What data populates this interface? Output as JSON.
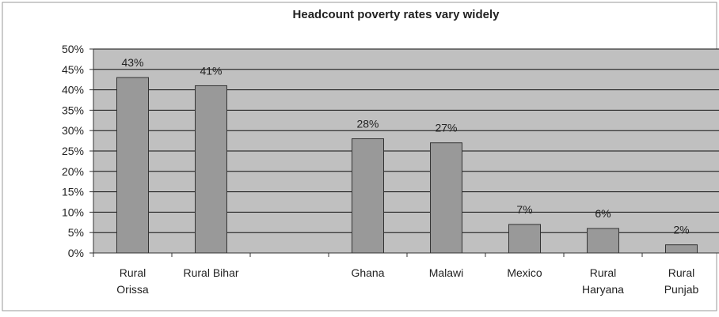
{
  "chart_data": {
    "type": "bar",
    "title": "Headcount poverty rates vary widely",
    "categories": [
      [
        "Rural",
        "Orissa"
      ],
      [
        "Rural Bihar"
      ],
      [
        ""
      ],
      [
        "Ghana"
      ],
      [
        "Malawi"
      ],
      [
        "Mexico"
      ],
      [
        "Rural",
        "Haryana"
      ],
      [
        "Rural",
        "Punjab"
      ]
    ],
    "values": [
      43,
      41,
      null,
      28,
      27,
      7,
      6,
      2
    ],
    "data_labels": [
      "43%",
      "41%",
      "",
      "28%",
      "27%",
      "7%",
      "6%",
      "2%"
    ],
    "y_ticks": [
      "0%",
      "5%",
      "10%",
      "15%",
      "20%",
      "25%",
      "30%",
      "35%",
      "40%",
      "45%",
      "50%"
    ],
    "ylim": [
      0,
      50
    ],
    "grid": true,
    "colors": {
      "plot_background": "#c0c0c0",
      "bar_fill": "#999999",
      "bar_stroke": "#333333",
      "gridline": "#111111"
    }
  }
}
